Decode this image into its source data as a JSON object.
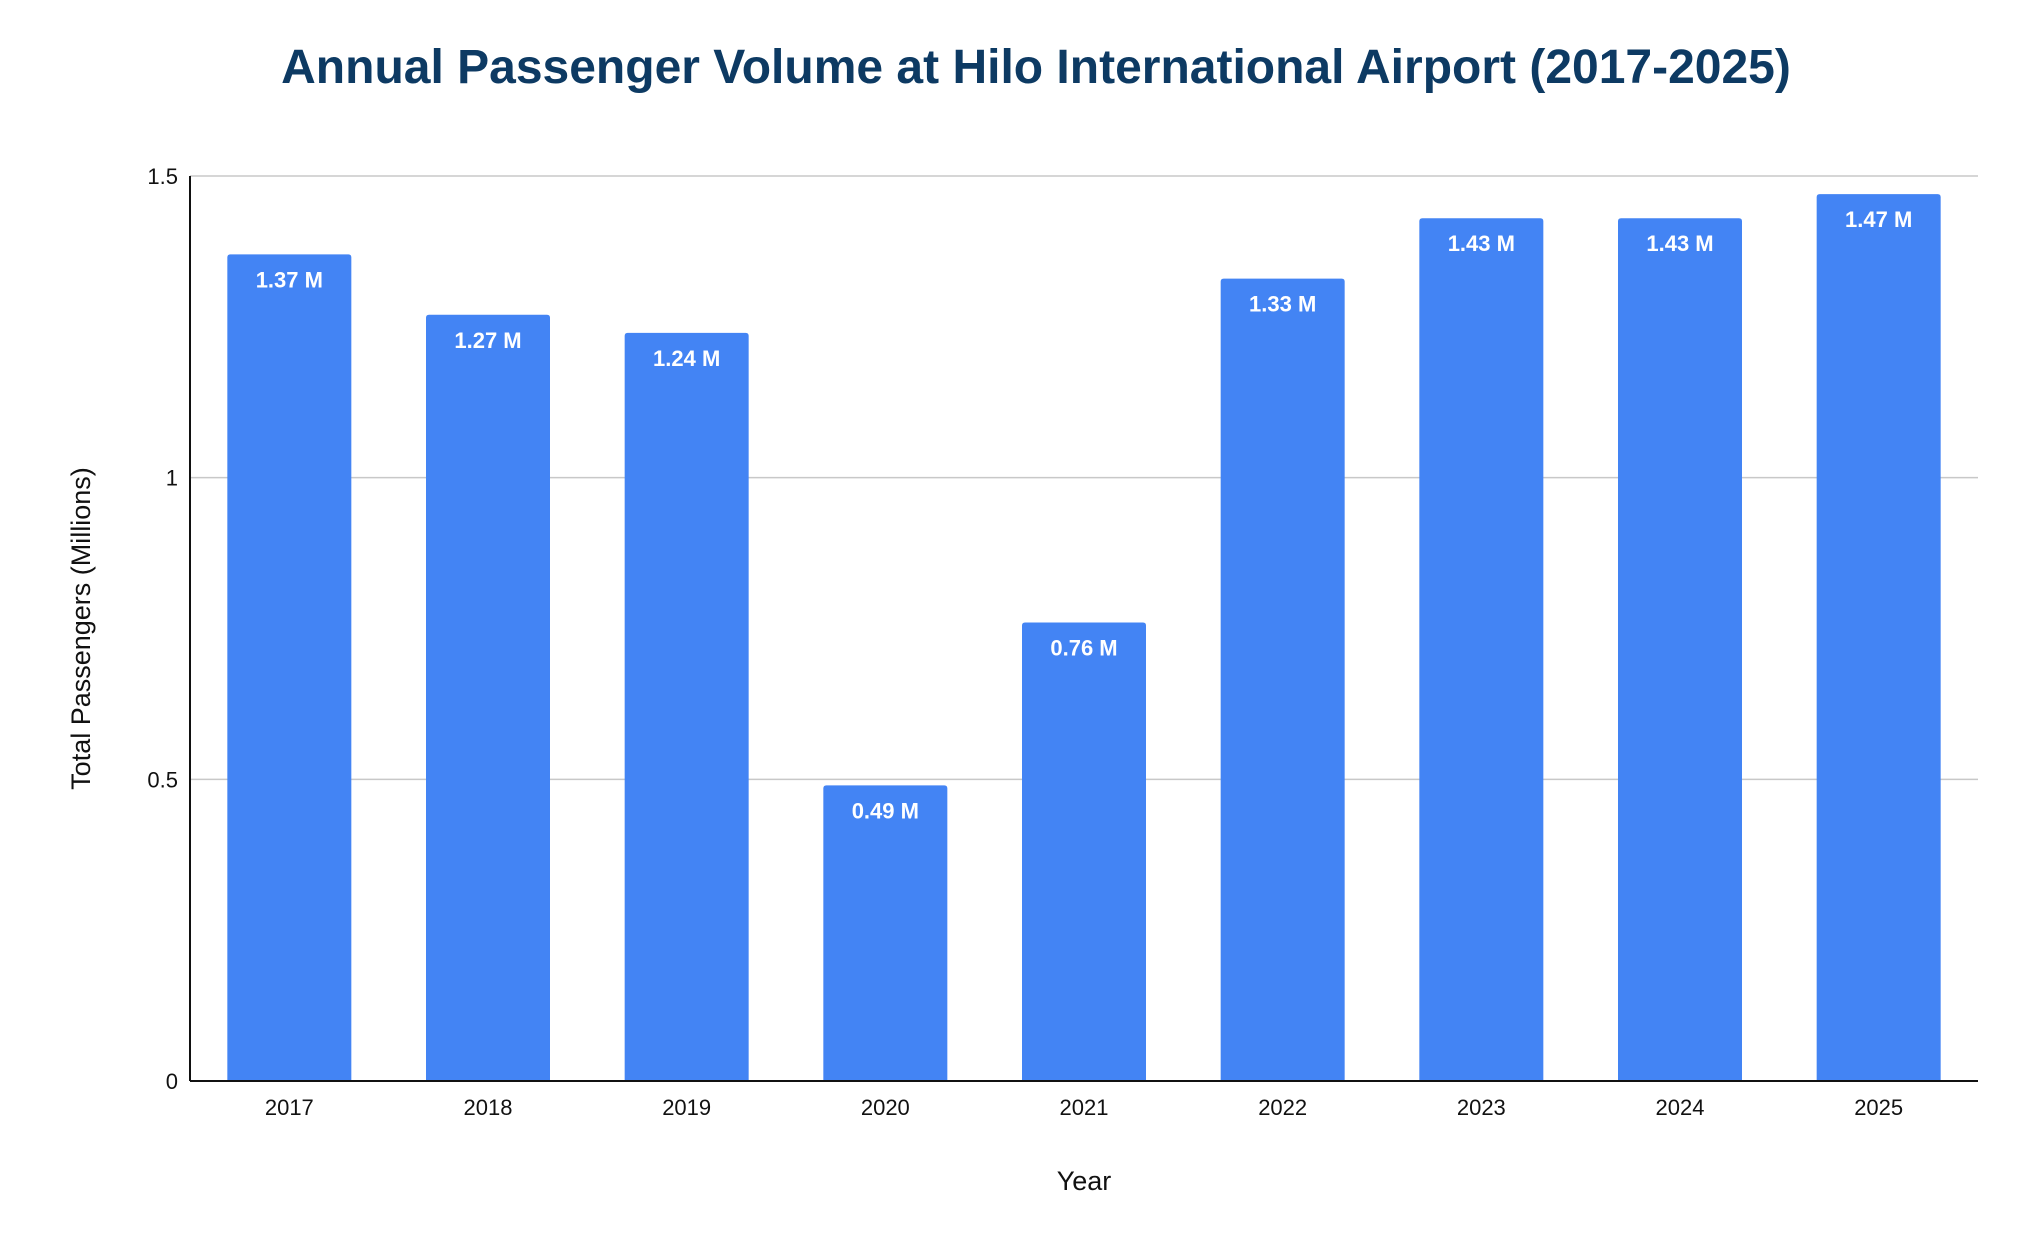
{
  "chart_data": {
    "type": "bar",
    "title": "Annual Passenger Volume at Hilo International Airport (2017-2025)",
    "xlabel": "Year",
    "ylabel": "Total Passengers (Millions)",
    "categories": [
      "2017",
      "2018",
      "2019",
      "2020",
      "2021",
      "2022",
      "2023",
      "2024",
      "2025"
    ],
    "values": [
      1.37,
      1.27,
      1.24,
      0.49,
      0.76,
      1.33,
      1.43,
      1.43,
      1.47
    ],
    "data_labels": [
      "1.37 M",
      "1.27 M",
      "1.24 M",
      "0.49 M",
      "0.76 M",
      "1.33 M",
      "1.43 M",
      "1.43 M",
      "1.47 M"
    ],
    "ylim": [
      0,
      1.5
    ],
    "yticks": [
      0,
      0.5,
      1,
      1.5
    ],
    "ytick_labels": [
      "0",
      "0.5",
      "1",
      "1.5"
    ],
    "grid": true,
    "bar_color": "#4384f4",
    "title_color": "#0d3a63",
    "grid_color": "#c8c8c8",
    "axis_color": "#111111"
  }
}
